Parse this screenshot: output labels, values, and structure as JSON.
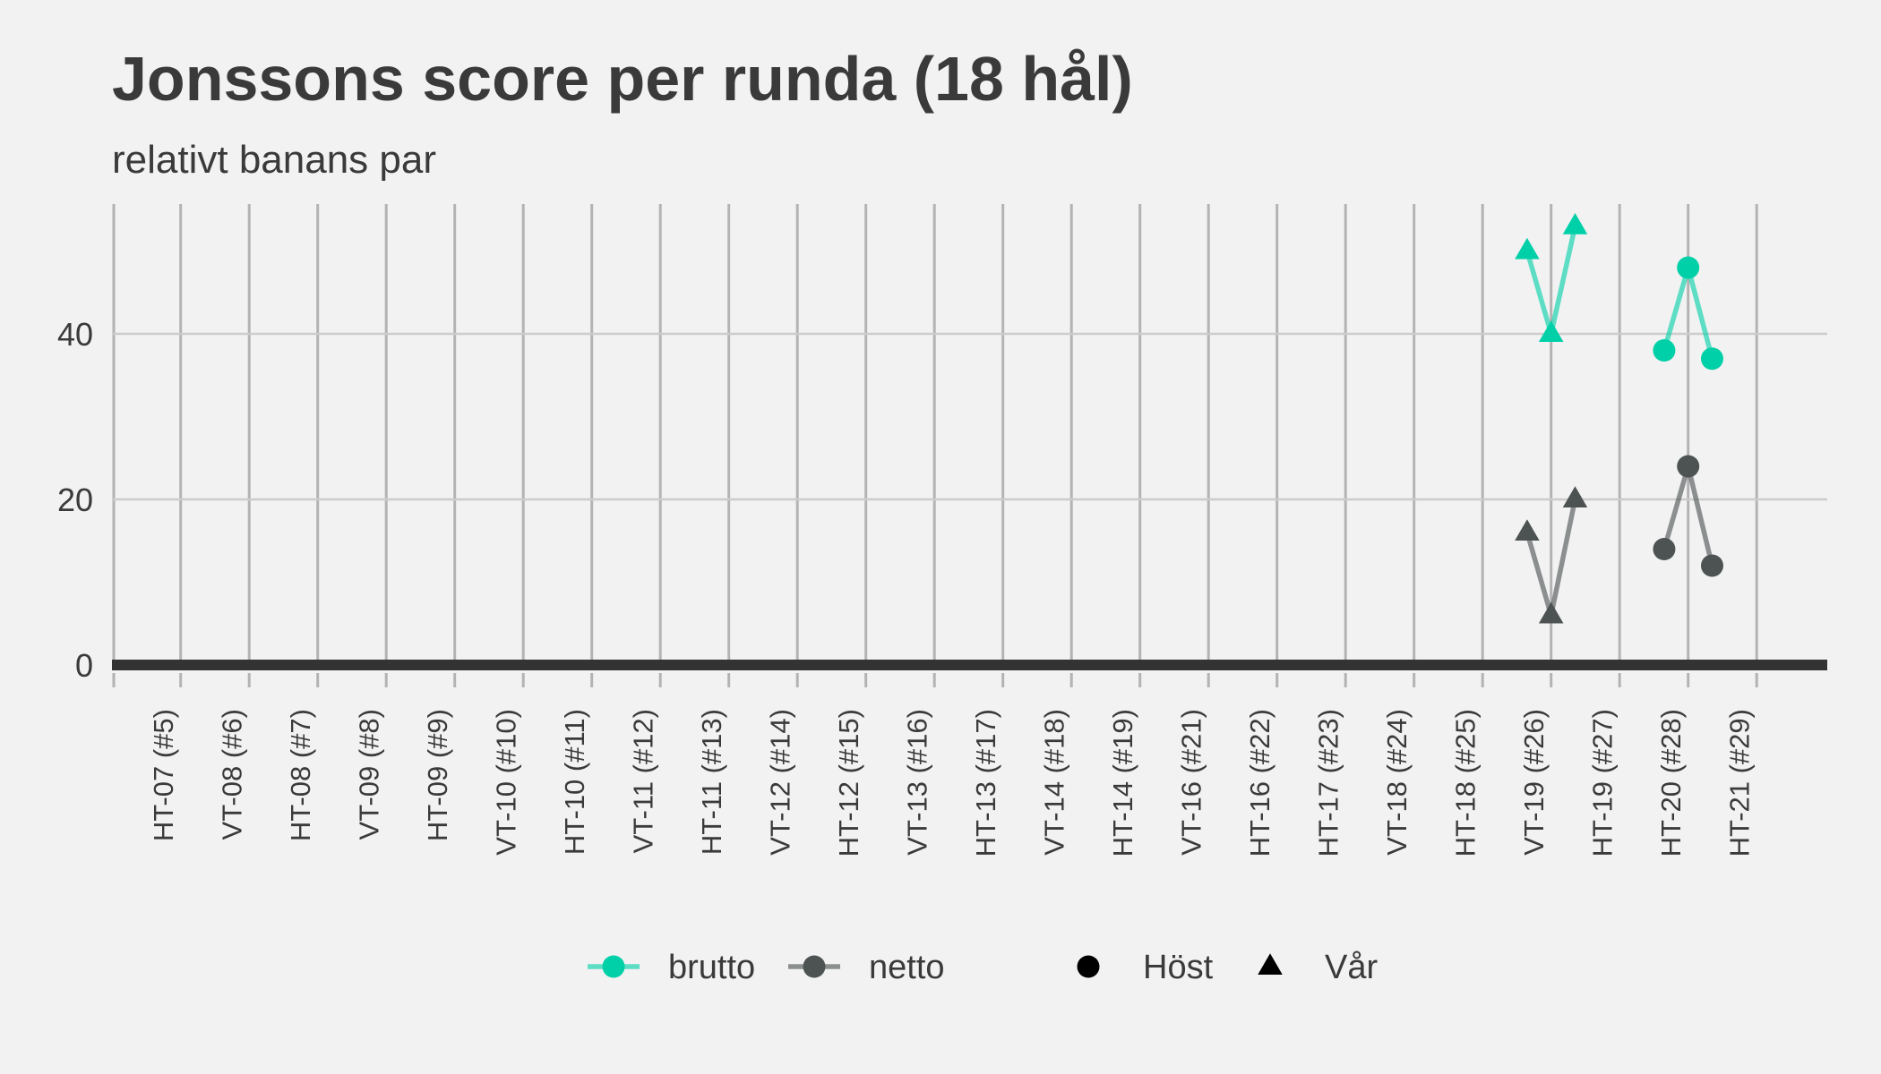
{
  "chart_data": {
    "type": "line",
    "title": "Jonssons score per runda (18 hål)",
    "subtitle": "relativt banans par",
    "xlabel": "",
    "ylabel": "",
    "ylim": [
      0,
      55
    ],
    "yticks": [
      "0",
      "20",
      "40"
    ],
    "grid": true,
    "legend_position": "bottom",
    "categories": [
      "HT-07 (#5)",
      "VT-08 (#6)",
      "HT-08 (#7)",
      "VT-09 (#8)",
      "HT-09 (#9)",
      "VT-10 (#10)",
      "HT-10 (#11)",
      "VT-11 (#12)",
      "HT-11 (#13)",
      "VT-12 (#14)",
      "HT-12 (#15)",
      "VT-13 (#16)",
      "HT-13 (#17)",
      "VT-14 (#18)",
      "HT-14 (#19)",
      "VT-16 (#21)",
      "HT-16 (#22)",
      "HT-17 (#23)",
      "VT-18 (#24)",
      "HT-18 (#25)",
      "VT-19 (#26)",
      "HT-19 (#27)",
      "HT-20 (#28)",
      "HT-21 (#29)"
    ],
    "series": [
      {
        "name": "brutto",
        "color": "#00d0a8",
        "points": [
          {
            "category": "VT-19 (#26)",
            "offset": -0.35,
            "y": 50,
            "shape": "Vår"
          },
          {
            "category": "VT-19 (#26)",
            "offset": 0.0,
            "y": 40,
            "shape": "Vår"
          },
          {
            "category": "VT-19 (#26)",
            "offset": 0.35,
            "y": 53,
            "shape": "Vår"
          },
          {
            "category": "HT-20 (#28)",
            "offset": -0.35,
            "y": 38,
            "shape": "Höst"
          },
          {
            "category": "HT-20 (#28)",
            "offset": 0.0,
            "y": 48,
            "shape": "Höst"
          },
          {
            "category": "HT-20 (#28)",
            "offset": 0.35,
            "y": 37,
            "shape": "Höst"
          }
        ]
      },
      {
        "name": "netto",
        "color": "#4d5352",
        "points": [
          {
            "category": "VT-19 (#26)",
            "offset": -0.35,
            "y": 16,
            "shape": "Vår"
          },
          {
            "category": "VT-19 (#26)",
            "offset": 0.0,
            "y": 6,
            "shape": "Vår"
          },
          {
            "category": "VT-19 (#26)",
            "offset": 0.35,
            "y": 20,
            "shape": "Vår"
          },
          {
            "category": "HT-20 (#28)",
            "offset": -0.35,
            "y": 14,
            "shape": "Höst"
          },
          {
            "category": "HT-20 (#28)",
            "offset": 0.0,
            "y": 24,
            "shape": "Höst"
          },
          {
            "category": "HT-20 (#28)",
            "offset": 0.35,
            "y": 12,
            "shape": "Höst"
          }
        ]
      }
    ],
    "shape_legend": [
      {
        "name": "Höst",
        "shape": "circle"
      },
      {
        "name": "Vår",
        "shape": "triangle"
      }
    ]
  }
}
